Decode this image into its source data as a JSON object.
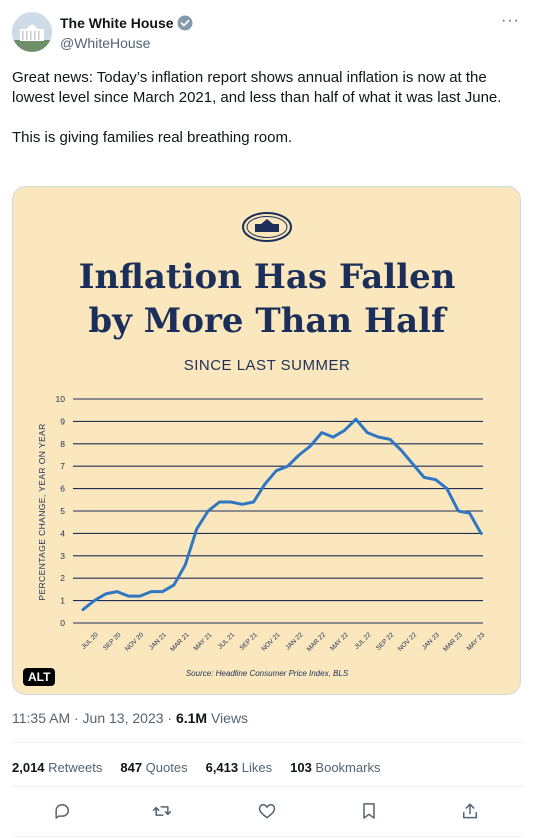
{
  "author": {
    "name": "The White House",
    "handle": "@WhiteHouse"
  },
  "tweet": {
    "paragraphs": [
      "Great news: Today’s inflation report shows annual inflation is now at the lowest level since March 2021, and less than half of what it was last June.",
      "This is giving families real breathing room."
    ]
  },
  "media": {
    "alt_label": "ALT",
    "accent_color": "#1b2f5a",
    "line_color": "#2f76c3",
    "background_color": "#fbe7bd"
  },
  "chart_data": {
    "type": "line",
    "title": "Inflation Has Fallen by More Than Half",
    "title_lines": [
      "Inflation Has Fallen",
      "by More Than Half"
    ],
    "subtitle": "SINCE LAST SUMMER",
    "xlabel": "",
    "ylabel": "PERCENTAGE CHANGE, YEAR ON YEAR",
    "source": "Source: Headline Consumer Price Index, BLS",
    "ylim": [
      0,
      10
    ],
    "yticks": [
      0,
      1,
      2,
      3,
      4,
      5,
      6,
      7,
      8,
      9,
      10
    ],
    "grid": true,
    "x_tick_labels": [
      "JUL 20",
      "SEP 20",
      "NOV 20",
      "JAN 21",
      "MAR 21",
      "MAY 21",
      "JUL 21",
      "SEP 21",
      "NOV 21",
      "JAN 22",
      "MAR 22",
      "MAY 22",
      "JUL 22",
      "SEP 22",
      "NOV 22",
      "JAN 23",
      "MAR 23",
      "MAY 23"
    ],
    "x": [
      "2020-06",
      "2020-07",
      "2020-08",
      "2020-09",
      "2020-10",
      "2020-11",
      "2020-12",
      "2021-01",
      "2021-02",
      "2021-03",
      "2021-04",
      "2021-05",
      "2021-06",
      "2021-07",
      "2021-08",
      "2021-09",
      "2021-10",
      "2021-11",
      "2021-12",
      "2022-01",
      "2022-02",
      "2022-03",
      "2022-04",
      "2022-05",
      "2022-06",
      "2022-07",
      "2022-08",
      "2022-09",
      "2022-10",
      "2022-11",
      "2022-12",
      "2023-01",
      "2023-02",
      "2023-03",
      "2023-04",
      "2023-05"
    ],
    "series": [
      {
        "values": [
          0.6,
          1.0,
          1.3,
          1.4,
          1.2,
          1.2,
          1.4,
          1.4,
          1.7,
          2.6,
          4.2,
          5.0,
          5.4,
          5.4,
          5.3,
          5.4,
          6.2,
          6.8,
          7.0,
          7.5,
          7.9,
          8.5,
          8.3,
          8.6,
          9.1,
          8.5,
          8.3,
          8.2,
          7.7,
          7.1,
          6.5,
          6.4,
          6.0,
          5.0,
          4.9,
          4.0
        ]
      }
    ]
  },
  "meta": {
    "time": "11:35 AM · Jun 13, 2023 · ",
    "views": "6.1M",
    "views_label": " Views"
  },
  "stats": {
    "retweets_count": "2,014",
    "retweets_label": " Retweets",
    "quotes_count": "847",
    "quotes_label": " Quotes",
    "likes_count": "6,413",
    "likes_label": " Likes",
    "bookmarks_count": "103",
    "bookmarks_label": " Bookmarks"
  }
}
